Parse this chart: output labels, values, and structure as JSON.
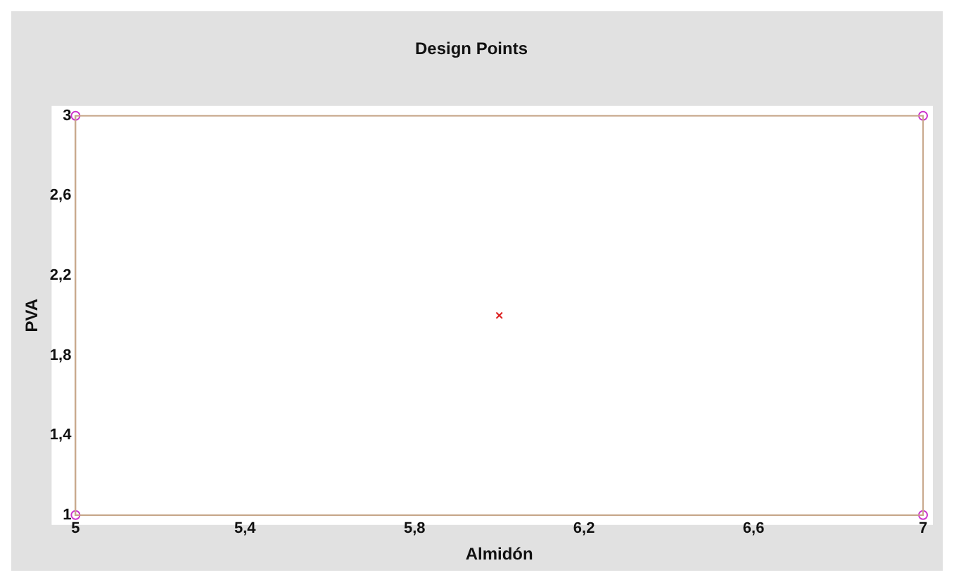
{
  "chart_data": {
    "type": "scatter",
    "title": "Design Points",
    "xlabel": "Almidón",
    "ylabel": "PVA",
    "series": [
      {
        "color": "#cc33cc",
        "marker": "circle",
        "x": [
          5,
          5,
          7,
          7
        ],
        "values": [
          1,
          3,
          1,
          3
        ]
      },
      {
        "color": "#dd2222",
        "marker": "cross",
        "x": [
          6
        ],
        "values": [
          2
        ]
      }
    ],
    "xlim": [
      5,
      7
    ],
    "ylim": [
      1,
      3
    ],
    "xticks": [
      5,
      {
        "value": 5.4,
        "label": "5,4"
      },
      {
        "value": 5.8,
        "label": "5,8"
      },
      {
        "value": 6.2,
        "label": "6,2"
      },
      {
        "value": 6.6,
        "label": "6,6"
      },
      7
    ],
    "yticks": [
      1,
      {
        "value": 1.4,
        "label": "1,4"
      },
      {
        "value": 1.8,
        "label": "1,8"
      },
      {
        "value": 2.2,
        "label": "2,2"
      },
      {
        "value": 2.6,
        "label": "2,6"
      },
      3
    ],
    "grid": false,
    "legend": false
  }
}
